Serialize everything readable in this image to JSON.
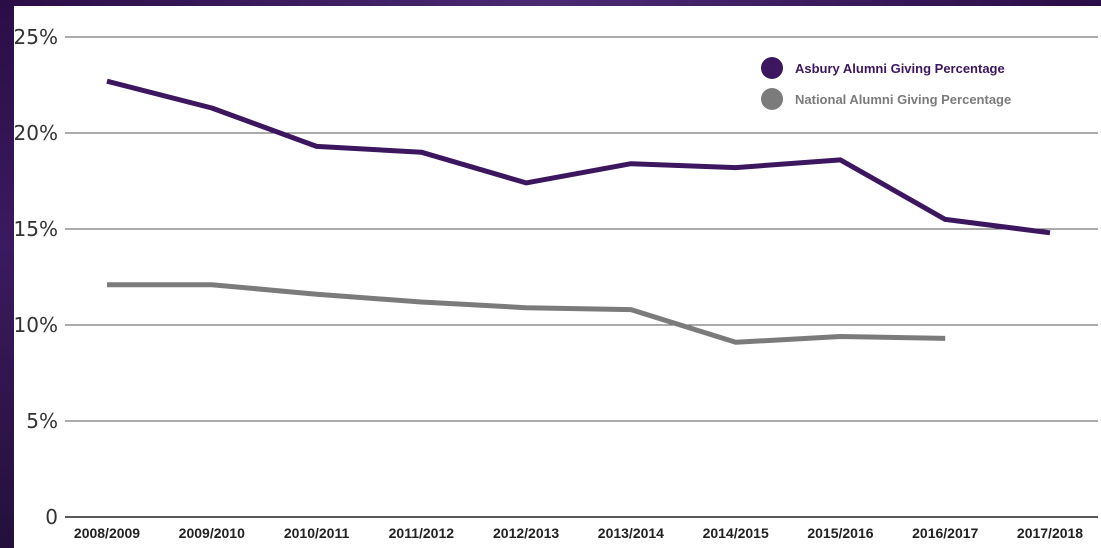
{
  "chart_data": {
    "type": "line",
    "categories": [
      "2008/2009",
      "2009/2010",
      "2010/2011",
      "2011/2012",
      "2012/2013",
      "2013/2014",
      "2014/2015",
      "2015/2016",
      "2016/2017",
      "2017/2018"
    ],
    "series": [
      {
        "name": "Asbury Alumni Giving Percentage",
        "color": "#3c1760",
        "values": [
          22.7,
          21.3,
          19.3,
          19.0,
          17.4,
          18.4,
          18.2,
          18.6,
          15.5,
          14.8
        ]
      },
      {
        "name": "National Alumni Giving Percentage",
        "color": "#7b7b7b",
        "values": [
          12.1,
          12.1,
          11.6,
          11.2,
          10.9,
          10.8,
          9.1,
          9.4,
          9.3,
          null
        ]
      }
    ],
    "ylim": [
      0,
      25
    ],
    "yticks": [
      0,
      5,
      10,
      15,
      20,
      25
    ],
    "ytick_labels": [
      "0",
      "5%",
      "10%",
      "15%",
      "20%",
      "25%"
    ],
    "grid": true,
    "legend_position": "top-right",
    "title": "",
    "xlabel": "",
    "ylabel": ""
  }
}
